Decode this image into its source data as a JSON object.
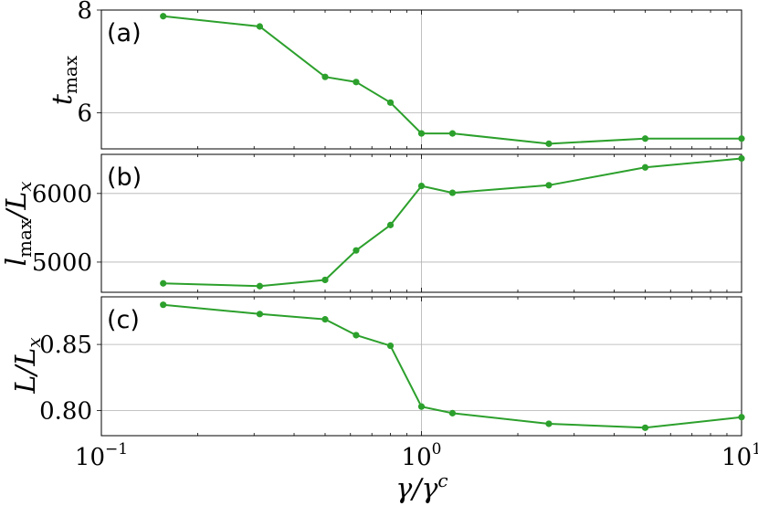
{
  "chart_data": [
    {
      "type": "line",
      "panel_label": "(a)",
      "ylabel": "t_max",
      "x_scale": "log",
      "xlim": [
        0.1,
        10
      ],
      "ylim": [
        5.3,
        8.0
      ],
      "yticks": [
        6,
        8
      ],
      "ytick_labels": [
        "6",
        "8"
      ],
      "grid": true,
      "color": "#2ca02c",
      "x": [
        0.156,
        0.3125,
        0.5,
        0.625,
        0.8,
        1.0,
        1.25,
        2.5,
        5.0,
        10.0
      ],
      "y": [
        7.88,
        7.68,
        6.7,
        6.6,
        6.2,
        5.6,
        5.6,
        5.4,
        5.5,
        5.5
      ]
    },
    {
      "type": "line",
      "panel_label": "(b)",
      "ylabel": "l_max/L_x",
      "x_scale": "log",
      "xlim": [
        0.1,
        10
      ],
      "ylim": [
        4560,
        6570
      ],
      "yticks": [
        5000,
        6000
      ],
      "ytick_labels": [
        "5000",
        "6000"
      ],
      "grid": true,
      "color": "#2ca02c",
      "x": [
        0.156,
        0.3125,
        0.5,
        0.625,
        0.8,
        1.0,
        1.25,
        2.5,
        5.0,
        10.0
      ],
      "y": [
        4690,
        4650,
        4740,
        5170,
        5540,
        6110,
        6010,
        6120,
        6380,
        6510
      ]
    },
    {
      "type": "line",
      "panel_label": "(c)",
      "ylabel": "L/L_x",
      "x_scale": "log",
      "xlim": [
        0.1,
        10
      ],
      "ylim": [
        0.781,
        0.886
      ],
      "yticks": [
        0.8,
        0.85
      ],
      "ytick_labels": [
        "0.80",
        "0.85"
      ],
      "grid": true,
      "color": "#2ca02c",
      "x": [
        0.156,
        0.3125,
        0.5,
        0.625,
        0.8,
        1.0,
        1.25,
        2.5,
        5.0,
        10.0
      ],
      "y": [
        0.88,
        0.873,
        0.869,
        0.857,
        0.849,
        0.803,
        0.798,
        0.79,
        0.787,
        0.795
      ],
      "xticks": [
        0.1,
        1,
        10
      ],
      "xtick_labels": [
        {
          "base": "10",
          "exp": "−1"
        },
        {
          "base": "10",
          "exp": "0"
        },
        {
          "base": "10",
          "exp": "1"
        }
      ],
      "xlabel": "γ/γ^c"
    }
  ],
  "labels": {
    "ylabel_a": {
      "main": "t",
      "sub": "max"
    },
    "ylabel_b": {
      "main": "l",
      "sub": "max",
      "tail": "/L",
      "tail_sub": "x"
    },
    "ylabel_c": {
      "main": "L/L",
      "sub": "x"
    },
    "xlabel": {
      "main": "γ/γ",
      "sup": "c"
    }
  }
}
